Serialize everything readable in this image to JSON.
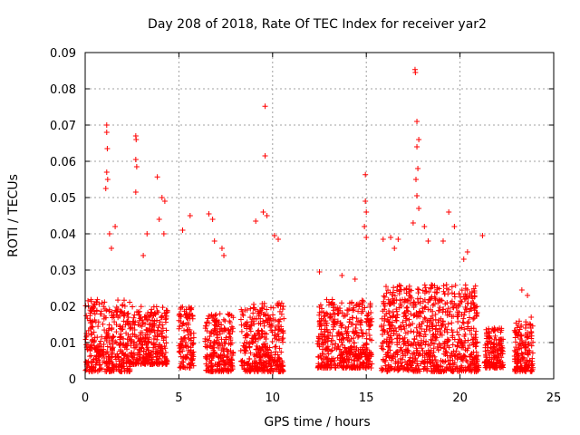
{
  "chart_data": {
    "type": "scatter",
    "title": "Day 208 of 2018, Rate Of TEC Index for receiver yar2",
    "xlabel": "GPS time / hours",
    "ylabel": "ROTI / TECUs",
    "xlim": [
      0,
      25
    ],
    "ylim": [
      0,
      0.09
    ],
    "x_ticks": [
      "0",
      "5",
      "10",
      "15",
      "20",
      "25"
    ],
    "y_ticks": [
      "0",
      "0.01",
      "0.02",
      "0.03",
      "0.04",
      "0.05",
      "0.06",
      "0.07",
      "0.08",
      "0.09"
    ],
    "x_tick_values": [
      0,
      5,
      10,
      15,
      20,
      25
    ],
    "y_tick_values": [
      0,
      0.01,
      0.02,
      0.03,
      0.04,
      0.05,
      0.06,
      0.07,
      0.08,
      0.09
    ],
    "grid": true,
    "marker": "+",
    "marker_color": "#ff0000",
    "series": [
      {
        "name": "ROTI",
        "points": [
          [
            1.15,
            0.07
          ],
          [
            1.15,
            0.068
          ],
          [
            1.18,
            0.0635
          ],
          [
            1.15,
            0.057
          ],
          [
            1.2,
            0.055
          ],
          [
            1.1,
            0.0525
          ],
          [
            1.3,
            0.04
          ],
          [
            1.6,
            0.042
          ],
          [
            1.4,
            0.036
          ],
          [
            2.7,
            0.067
          ],
          [
            2.72,
            0.066
          ],
          [
            2.7,
            0.0605
          ],
          [
            2.75,
            0.0585
          ],
          [
            2.7,
            0.0515
          ],
          [
            3.3,
            0.04
          ],
          [
            3.1,
            0.034
          ],
          [
            3.85,
            0.0557
          ],
          [
            4.1,
            0.05
          ],
          [
            4.25,
            0.049
          ],
          [
            3.95,
            0.044
          ],
          [
            4.2,
            0.04
          ],
          [
            5.6,
            0.045
          ],
          [
            5.2,
            0.041
          ],
          [
            6.6,
            0.0455
          ],
          [
            6.8,
            0.044
          ],
          [
            6.9,
            0.038
          ],
          [
            7.3,
            0.036
          ],
          [
            7.4,
            0.034
          ],
          [
            9.6,
            0.0752
          ],
          [
            9.6,
            0.0615
          ],
          [
            9.5,
            0.046
          ],
          [
            9.7,
            0.045
          ],
          [
            9.1,
            0.0435
          ],
          [
            10.1,
            0.0395
          ],
          [
            10.3,
            0.0385
          ],
          [
            12.5,
            0.0295
          ],
          [
            13.7,
            0.0285
          ],
          [
            14.4,
            0.0275
          ],
          [
            14.95,
            0.0563
          ],
          [
            14.95,
            0.049
          ],
          [
            15.0,
            0.046
          ],
          [
            14.9,
            0.042
          ],
          [
            15.0,
            0.039
          ],
          [
            15.9,
            0.0385
          ],
          [
            16.3,
            0.039
          ],
          [
            16.5,
            0.036
          ],
          [
            16.7,
            0.0385
          ],
          [
            17.6,
            0.0853
          ],
          [
            17.62,
            0.0845
          ],
          [
            17.7,
            0.071
          ],
          [
            17.8,
            0.066
          ],
          [
            17.7,
            0.064
          ],
          [
            17.75,
            0.058
          ],
          [
            17.65,
            0.055
          ],
          [
            17.7,
            0.0505
          ],
          [
            17.8,
            0.047
          ],
          [
            17.5,
            0.043
          ],
          [
            18.1,
            0.042
          ],
          [
            18.3,
            0.038
          ],
          [
            19.4,
            0.046
          ],
          [
            19.7,
            0.042
          ],
          [
            19.1,
            0.038
          ],
          [
            20.2,
            0.033
          ],
          [
            20.4,
            0.035
          ],
          [
            21.2,
            0.0395
          ],
          [
            23.3,
            0.0245
          ],
          [
            23.6,
            0.023
          ],
          [
            23.8,
            0.017
          ]
        ]
      }
    ],
    "dense_clusters": [
      {
        "x_range": [
          0.0,
          2.4
        ],
        "y_range": [
          0.002,
          0.022
        ]
      },
      {
        "x_range": [
          2.4,
          4.4
        ],
        "y_range": [
          0.004,
          0.02
        ]
      },
      {
        "x_range": [
          5.0,
          5.8
        ],
        "y_range": [
          0.003,
          0.02
        ]
      },
      {
        "x_range": [
          6.4,
          7.9
        ],
        "y_range": [
          0.002,
          0.018
        ]
      },
      {
        "x_range": [
          8.3,
          10.6
        ],
        "y_range": [
          0.002,
          0.021
        ]
      },
      {
        "x_range": [
          12.4,
          15.3
        ],
        "y_range": [
          0.003,
          0.022
        ]
      },
      {
        "x_range": [
          15.8,
          21.0
        ],
        "y_range": [
          0.002,
          0.026
        ]
      },
      {
        "x_range": [
          21.3,
          22.3
        ],
        "y_range": [
          0.003,
          0.014
        ]
      },
      {
        "x_range": [
          22.9,
          23.9
        ],
        "y_range": [
          0.002,
          0.016
        ]
      }
    ]
  }
}
